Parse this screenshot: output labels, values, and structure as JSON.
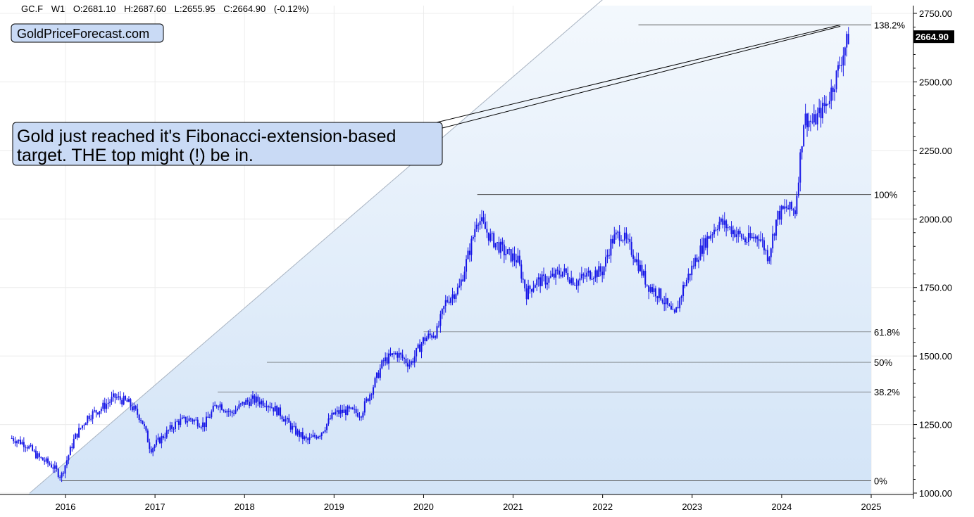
{
  "header": {
    "symbol": "GC.F",
    "timeframe": "W1",
    "open": "O:2681.10",
    "high": "H:2687.60",
    "low": "L:2655.95",
    "close": "C:2664.90",
    "change": "(-0.12%)"
  },
  "brand": "GoldPriceForecast.com",
  "annotation": {
    "line1": "Gold just reached it's Fibonacci-extension-based",
    "line2": "target. THE top might (!) be in."
  },
  "current_price_label": "2664.90",
  "colors": {
    "candles": "#1515e6",
    "fill_light": "#eef5fc",
    "fill_dark": "#d9e8f8",
    "annotation_bg": "#c9daf5",
    "price_tag": "#000000",
    "fib_line": "#555555",
    "grid": "#ececec"
  },
  "chart_data": {
    "type": "candlestick",
    "frequency": "weekly",
    "title": "",
    "xlabel": "",
    "ylabel": "",
    "y_axis_side": "right",
    "grid": true,
    "xlim": [
      2015.3,
      2025.2
    ],
    "ylim": [
      995,
      2765
    ],
    "x_ticks": [
      {
        "value": 2016,
        "label": "2016"
      },
      {
        "value": 2017,
        "label": "2017"
      },
      {
        "value": 2018,
        "label": "2018"
      },
      {
        "value": 2019,
        "label": "2019"
      },
      {
        "value": 2020,
        "label": "2020"
      },
      {
        "value": 2021,
        "label": "2021"
      },
      {
        "value": 2022,
        "label": "2022"
      },
      {
        "value": 2023,
        "label": "2023"
      },
      {
        "value": 2024,
        "label": "2024"
      },
      {
        "value": 2025,
        "label": "2025"
      }
    ],
    "y_ticks": [
      {
        "value": 1000,
        "label": "1000.00"
      },
      {
        "value": 1250,
        "label": "1250.00"
      },
      {
        "value": 1500,
        "label": "1500.00"
      },
      {
        "value": 1750,
        "label": "1750.00"
      },
      {
        "value": 2000,
        "label": "2000.00"
      },
      {
        "value": 2250,
        "label": "2250.00"
      },
      {
        "value": 2500,
        "label": "2500.00"
      },
      {
        "value": 2750,
        "label": "2750.00"
      }
    ],
    "fibonacci_levels": [
      {
        "label": "0%",
        "value": 1045,
        "x_start": 2015.95
      },
      {
        "label": "38.2%",
        "value": 1369,
        "x_start": 2017.7
      },
      {
        "label": "50%",
        "value": 1477,
        "x_start": 2018.25
      },
      {
        "label": "61.8%",
        "value": 1588,
        "x_start": 2020.0
      },
      {
        "label": "100%",
        "value": 2089,
        "x_start": 2020.6
      },
      {
        "label": "138.2%",
        "value": 2708,
        "x_start": 2022.4
      }
    ],
    "fib_label_x": 2025.0,
    "current_price": 2664.9,
    "trendline": {
      "x1": 2015.6,
      "y1": 1000,
      "x2": 2022.0,
      "y2": 2800
    },
    "series": [
      {
        "x": [
          2015.4,
          2015.55,
          2015.7,
          2015.85,
          2015.95,
          2016.1,
          2016.25,
          2016.4,
          2016.55,
          2016.7,
          2016.85,
          2016.95,
          2017.1,
          2017.25,
          2017.4,
          2017.55,
          2017.7,
          2017.85,
          2018.0,
          2018.1,
          2018.25,
          2018.4,
          2018.55,
          2018.7,
          2018.85,
          2019.0,
          2019.15,
          2019.3,
          2019.45,
          2019.55,
          2019.7,
          2019.85,
          2020.0,
          2020.15,
          2020.25,
          2020.4,
          2020.55,
          2020.6,
          2020.75,
          2020.9,
          2021.05,
          2021.15,
          2021.25,
          2021.4,
          2021.55,
          2021.7,
          2021.85,
          2022.0,
          2022.1,
          2022.2,
          2022.35,
          2022.5,
          2022.65,
          2022.8,
          2022.9,
          2023.05,
          2023.15,
          2023.3,
          2023.45,
          2023.6,
          2023.75,
          2023.85,
          2023.95,
          2024.05,
          2024.15,
          2024.25,
          2024.35,
          2024.5,
          2024.6,
          2024.7,
          2024.75
        ],
        "values": [
          1200,
          1180,
          1130,
          1100,
          1060,
          1200,
          1280,
          1310,
          1350,
          1330,
          1270,
          1160,
          1210,
          1260,
          1270,
          1250,
          1330,
          1290,
          1330,
          1340,
          1330,
          1290,
          1230,
          1190,
          1220,
          1290,
          1300,
          1290,
          1400,
          1480,
          1510,
          1470,
          1560,
          1590,
          1700,
          1750,
          1930,
          2010,
          1930,
          1880,
          1850,
          1730,
          1770,
          1780,
          1810,
          1770,
          1800,
          1810,
          1920,
          1950,
          1870,
          1760,
          1720,
          1640,
          1750,
          1860,
          1920,
          1990,
          1960,
          1920,
          1940,
          1860,
          2010,
          2040,
          2030,
          2370,
          2350,
          2420,
          2510,
          2620,
          2665
        ]
      }
    ]
  }
}
